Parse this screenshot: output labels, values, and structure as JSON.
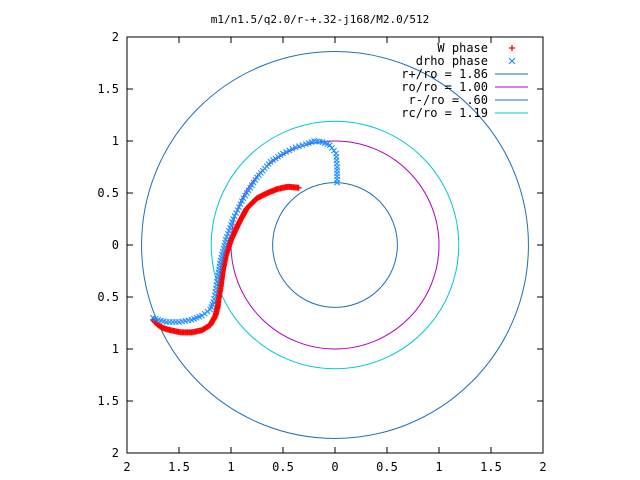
{
  "chart_data": {
    "type": "scatter",
    "title": "m1/n1.5/q2.0/r-+.32-j168/M2.0/512",
    "xlim": [
      -2,
      2
    ],
    "ylim": [
      -2,
      2
    ],
    "x_tick_labels": [
      "2",
      "1.5",
      "1",
      "0.5",
      "0",
      "0.5",
      "1",
      "1.5",
      "2"
    ],
    "x_tick_values": [
      -2,
      -1.5,
      -1,
      -0.5,
      0,
      0.5,
      1,
      1.5,
      2
    ],
    "y_tick_labels": [
      "2",
      "1.5",
      "1",
      "0.5",
      "0",
      "0.5",
      "1",
      "1.5",
      "2"
    ],
    "y_tick_values": [
      2,
      1.5,
      1,
      0.5,
      0,
      -0.5,
      -1,
      -1.5,
      -2
    ],
    "grid": false,
    "legend_position": "top-right",
    "legend": [
      {
        "label": "W phase",
        "marker": "+",
        "color": "#ff0000"
      },
      {
        "label": "drho phase",
        "marker": "x",
        "color": "#1e90ff"
      },
      {
        "label": "r+/ro = 1.86",
        "marker": "line",
        "color": "#1f6fb5"
      },
      {
        "label": "ro/ro = 1.00",
        "marker": "line",
        "color": "#b000c0"
      },
      {
        "label": "r-/ro = .60",
        "marker": "line",
        "color": "#1f6fb5"
      },
      {
        "label": "rc/ro = 1.19",
        "marker": "line",
        "color": "#00c8d2"
      }
    ],
    "circles": [
      {
        "name": "r+/ro",
        "radius": 1.86,
        "color": "#1f6fb5"
      },
      {
        "name": "ro/ro",
        "radius": 1.0,
        "color": "#b000c0"
      },
      {
        "name": "r-/ro",
        "radius": 0.6,
        "color": "#1f6fb5"
      },
      {
        "name": "rc/ro",
        "radius": 1.19,
        "color": "#00c8d2"
      }
    ],
    "series": [
      {
        "name": "W phase",
        "marker": "+",
        "color": "#ff0000",
        "x": [
          -0.35,
          -0.45,
          -0.55,
          -0.65,
          -0.75,
          -0.85,
          -0.93,
          -1.0,
          -1.05,
          -1.08,
          -1.1,
          -1.12,
          -1.13,
          -1.15,
          -1.2,
          -1.28,
          -1.38,
          -1.48,
          -1.58,
          -1.65,
          -1.7,
          -1.75
        ],
        "y": [
          0.55,
          0.56,
          0.54,
          0.5,
          0.45,
          0.35,
          0.2,
          0.05,
          -0.1,
          -0.25,
          -0.4,
          -0.52,
          -0.6,
          -0.68,
          -0.77,
          -0.82,
          -0.84,
          -0.84,
          -0.82,
          -0.8,
          -0.77,
          -0.72
        ]
      },
      {
        "name": "drho phase",
        "marker": "x",
        "color": "#1e90ff",
        "x": [
          0.02,
          0.02,
          0.01,
          -0.05,
          -0.12,
          -0.2,
          -0.28,
          -0.38,
          -0.5,
          -0.62,
          -0.75,
          -0.88,
          -0.98,
          -1.05,
          -1.1,
          -1.13,
          -1.15,
          -1.17,
          -1.2,
          -1.28,
          -1.38,
          -1.5,
          -1.62,
          -1.7,
          -1.75
        ],
        "y": [
          0.6,
          0.75,
          0.88,
          0.96,
          0.99,
          1.0,
          0.97,
          0.94,
          0.88,
          0.8,
          0.65,
          0.45,
          0.25,
          0.05,
          -0.15,
          -0.32,
          -0.45,
          -0.55,
          -0.62,
          -0.68,
          -0.72,
          -0.74,
          -0.74,
          -0.72,
          -0.7
        ]
      }
    ]
  }
}
